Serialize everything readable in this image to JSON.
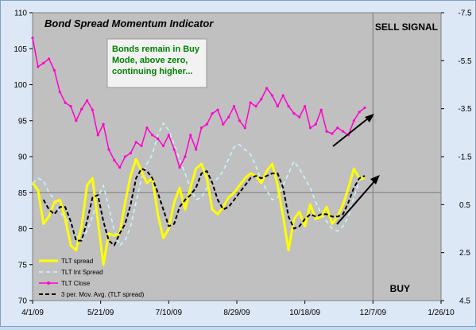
{
  "chart_data": {
    "type": "line",
    "title": "Bond Spread Momentum Indicator",
    "annotation": "Bonds remain in Buy Mode, above zero, continuing higher...",
    "annotation_lines": [
      "Bonds remain in Buy",
      "Mode, above zero,",
      "continuing higher..."
    ],
    "signal_top": "SELL SIGNAL",
    "signal_bottom": "BUY",
    "x_tick_labels": [
      "4/1/09",
      "5/21/09",
      "7/10/09",
      "8/29/09",
      "10/18/09",
      "12/7/09",
      "1/26/10"
    ],
    "x_ticks_days": [
      0,
      50,
      100,
      150,
      200,
      250,
      300
    ],
    "xlim_days": [
      0,
      300
    ],
    "vertical_marker_day": 250,
    "y_left": {
      "ticks": [
        70,
        75,
        80,
        85,
        90,
        95,
        100,
        105,
        110
      ],
      "ylim": [
        70,
        110
      ]
    },
    "y_right": {
      "ticks": [
        "-7.5",
        "-5.5",
        "-3.5",
        "-1.5",
        "0.5",
        "2.5",
        "4.5"
      ],
      "ylim": [
        -7.5,
        4.5
      ],
      "inverted": true
    },
    "colors": {
      "tlt_spread": "#ffff00",
      "tlt_int_spread": "#c8f4ff",
      "tlt_close": "#ff00cc",
      "moving_average": "#000000",
      "plot_bg": "#c0c0c0",
      "annotation_text": "#008000",
      "arrow": "#000000"
    },
    "grid": false,
    "legend_position": "bottom-left",
    "series": [
      {
        "name": "TLT spread",
        "key": "tlt_spread",
        "axis": "right",
        "x": [
          0,
          4,
          8,
          12,
          16,
          20,
          24,
          28,
          32,
          36,
          40,
          44,
          48,
          52,
          56,
          60,
          64,
          68,
          72,
          76,
          80,
          84,
          88,
          92,
          96,
          100,
          104,
          108,
          112,
          116,
          120,
          124,
          128,
          132,
          136,
          140,
          144,
          148,
          152,
          156,
          160,
          164,
          168,
          172,
          176,
          180,
          184,
          188,
          192,
          196,
          200,
          204,
          208,
          212,
          216,
          220,
          224,
          228,
          232,
          236,
          240,
          244
        ],
        "values": [
          -0.4,
          -0.1,
          1.3,
          1.0,
          0.4,
          0.3,
          1.1,
          2.2,
          2.4,
          1.4,
          -0.3,
          -0.6,
          1.2,
          3.0,
          1.7,
          1.8,
          1.7,
          0.4,
          -0.7,
          -1.4,
          -0.9,
          -0.4,
          -0.6,
          0.9,
          1.9,
          1.5,
          0.4,
          -0.2,
          0.7,
          -0.2,
          -1.0,
          -1.2,
          -0.6,
          0.7,
          0.9,
          0.6,
          0.2,
          0.0,
          -0.3,
          -0.6,
          -0.8,
          -0.7,
          -0.4,
          -0.9,
          -1.2,
          -0.3,
          1.0,
          2.4,
          1.1,
          0.8,
          1.4,
          0.5,
          1.1,
          1.0,
          0.6,
          1.3,
          1.0,
          0.5,
          -0.2,
          -1.0,
          -0.6,
          -0.6
        ]
      },
      {
        "name": "TLT Int Spread",
        "key": "tlt_int_spread",
        "axis": "right",
        "x": [
          0,
          4,
          8,
          12,
          16,
          20,
          24,
          28,
          32,
          36,
          40,
          44,
          48,
          52,
          56,
          60,
          64,
          68,
          72,
          76,
          80,
          84,
          88,
          92,
          96,
          100,
          104,
          108,
          112,
          116,
          120,
          124,
          128,
          132,
          136,
          140,
          144,
          148,
          152,
          156,
          160,
          164,
          168,
          172,
          176,
          180,
          184,
          188,
          192,
          196,
          200,
          204,
          208,
          212,
          216,
          220,
          224,
          228,
          232,
          236,
          240,
          244
        ],
        "values": [
          -0.4,
          -0.6,
          -0.5,
          0.0,
          0.3,
          0.8,
          1.1,
          1.3,
          1.8,
          2.0,
          1.6,
          1.0,
          0.2,
          -0.3,
          0.6,
          1.6,
          2.2,
          2.0,
          1.4,
          0.4,
          -0.6,
          -1.2,
          -1.6,
          -2.4,
          -2.9,
          -2.6,
          -2.0,
          -1.4,
          -0.8,
          -0.2,
          0.3,
          0.2,
          -0.2,
          -0.4,
          -0.6,
          -0.9,
          -1.4,
          -1.9,
          -2.0,
          -1.8,
          -1.6,
          -1.1,
          -0.5,
          -0.1,
          0.3,
          0.2,
          -0.3,
          -0.8,
          -1.3,
          -1.0,
          -0.6,
          -0.2,
          0.4,
          0.9,
          1.2,
          1.5,
          1.6,
          1.4,
          1.0,
          0.2,
          -0.5,
          -0.7
        ]
      },
      {
        "name": "TLT Close",
        "key": "tlt_close",
        "axis": "left",
        "x": [
          0,
          4,
          8,
          12,
          16,
          20,
          24,
          28,
          32,
          36,
          40,
          44,
          48,
          52,
          56,
          60,
          64,
          68,
          72,
          76,
          80,
          84,
          88,
          92,
          96,
          100,
          104,
          108,
          112,
          116,
          120,
          124,
          128,
          132,
          136,
          140,
          144,
          148,
          152,
          156,
          160,
          164,
          168,
          172,
          176,
          180,
          184,
          188,
          192,
          196,
          200,
          204,
          208,
          212,
          216,
          220,
          224,
          228,
          232,
          236,
          240,
          244
        ],
        "values": [
          106.5,
          102.5,
          103.0,
          103.6,
          102.0,
          99.0,
          97.5,
          97.0,
          95.0,
          96.6,
          97.8,
          96.5,
          93.0,
          94.5,
          91.0,
          89.5,
          88.5,
          90.0,
          90.5,
          92.0,
          91.5,
          94.0,
          93.0,
          92.5,
          91.5,
          93.0,
          91.0,
          88.5,
          90.0,
          93.0,
          91.0,
          94.0,
          94.5,
          96.0,
          96.5,
          94.5,
          95.5,
          97.0,
          95.0,
          94.0,
          97.5,
          97.0,
          98.0,
          99.5,
          98.5,
          97.0,
          98.5,
          97.0,
          96.0,
          95.5,
          97.0,
          94.0,
          94.5,
          96.5,
          93.5,
          93.2,
          94.0,
          93.5,
          93.0,
          95.0,
          96.2,
          96.8
        ]
      },
      {
        "name": "3 per. Mov. Avg. (TLT spread)",
        "key": "moving_average",
        "axis": "right",
        "x": [
          8,
          12,
          16,
          20,
          24,
          28,
          32,
          36,
          40,
          44,
          48,
          52,
          56,
          60,
          64,
          68,
          72,
          76,
          80,
          84,
          88,
          92,
          96,
          100,
          104,
          108,
          112,
          116,
          120,
          124,
          128,
          132,
          136,
          140,
          144,
          148,
          152,
          156,
          160,
          164,
          168,
          172,
          176,
          180,
          184,
          188,
          192,
          196,
          200,
          204,
          208,
          212,
          216,
          220,
          224,
          228,
          232,
          236,
          240,
          244
        ],
        "values": [
          0.3,
          0.7,
          0.9,
          0.6,
          0.6,
          1.2,
          2.0,
          2.0,
          1.2,
          0.2,
          0.1,
          1.2,
          2.0,
          2.2,
          1.7,
          1.3,
          0.5,
          -0.6,
          -1.0,
          -0.9,
          -0.6,
          0.0,
          0.7,
          1.4,
          1.3,
          0.6,
          0.3,
          0.1,
          -0.2,
          -0.8,
          -0.9,
          -0.4,
          0.3,
          0.7,
          0.6,
          0.3,
          0.0,
          -0.3,
          -0.6,
          -0.7,
          -0.6,
          -0.7,
          -0.8,
          -0.8,
          -0.2,
          1.0,
          1.5,
          1.4,
          1.1,
          0.9,
          1.0,
          0.9,
          0.9,
          1.0,
          1.0,
          0.9,
          0.4,
          -0.2,
          -0.6,
          -0.7
        ]
      }
    ]
  }
}
